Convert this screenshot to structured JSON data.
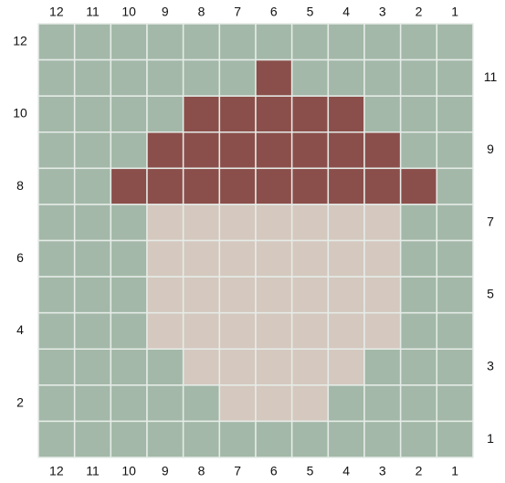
{
  "columns": [
    "12",
    "11",
    "10",
    "9",
    "8",
    "7",
    "6",
    "5",
    "4",
    "3",
    "2",
    "1"
  ],
  "rows": [
    "12",
    "11",
    "10",
    "9",
    "8",
    "7",
    "6",
    "5",
    "4",
    "3",
    "2",
    "1"
  ],
  "palette": {
    "g": "#a3b8a8",
    "r": "#8b4f4b",
    "b": "#d4c8bf"
  },
  "cells": [
    [
      "g",
      "g",
      "g",
      "g",
      "g",
      "g",
      "g",
      "g",
      "g",
      "g",
      "g",
      "g"
    ],
    [
      "g",
      "g",
      "g",
      "g",
      "g",
      "g",
      "r",
      "g",
      "g",
      "g",
      "g",
      "g"
    ],
    [
      "g",
      "g",
      "g",
      "g",
      "r",
      "r",
      "r",
      "r",
      "r",
      "g",
      "g",
      "g"
    ],
    [
      "g",
      "g",
      "g",
      "r",
      "r",
      "r",
      "r",
      "r",
      "r",
      "r",
      "g",
      "g"
    ],
    [
      "g",
      "g",
      "r",
      "r",
      "r",
      "r",
      "r",
      "r",
      "r",
      "r",
      "r",
      "g"
    ],
    [
      "g",
      "g",
      "g",
      "b",
      "b",
      "b",
      "b",
      "b",
      "b",
      "b",
      "g",
      "g"
    ],
    [
      "g",
      "g",
      "g",
      "b",
      "b",
      "b",
      "b",
      "b",
      "b",
      "b",
      "g",
      "g"
    ],
    [
      "g",
      "g",
      "g",
      "b",
      "b",
      "b",
      "b",
      "b",
      "b",
      "b",
      "g",
      "g"
    ],
    [
      "g",
      "g",
      "g",
      "b",
      "b",
      "b",
      "b",
      "b",
      "b",
      "b",
      "g",
      "g"
    ],
    [
      "g",
      "g",
      "g",
      "g",
      "b",
      "b",
      "b",
      "b",
      "b",
      "g",
      "g",
      "g"
    ],
    [
      "g",
      "g",
      "g",
      "g",
      "g",
      "b",
      "b",
      "b",
      "g",
      "g",
      "g",
      "g"
    ],
    [
      "g",
      "g",
      "g",
      "g",
      "g",
      "g",
      "g",
      "g",
      "g",
      "g",
      "g",
      "g"
    ]
  ]
}
